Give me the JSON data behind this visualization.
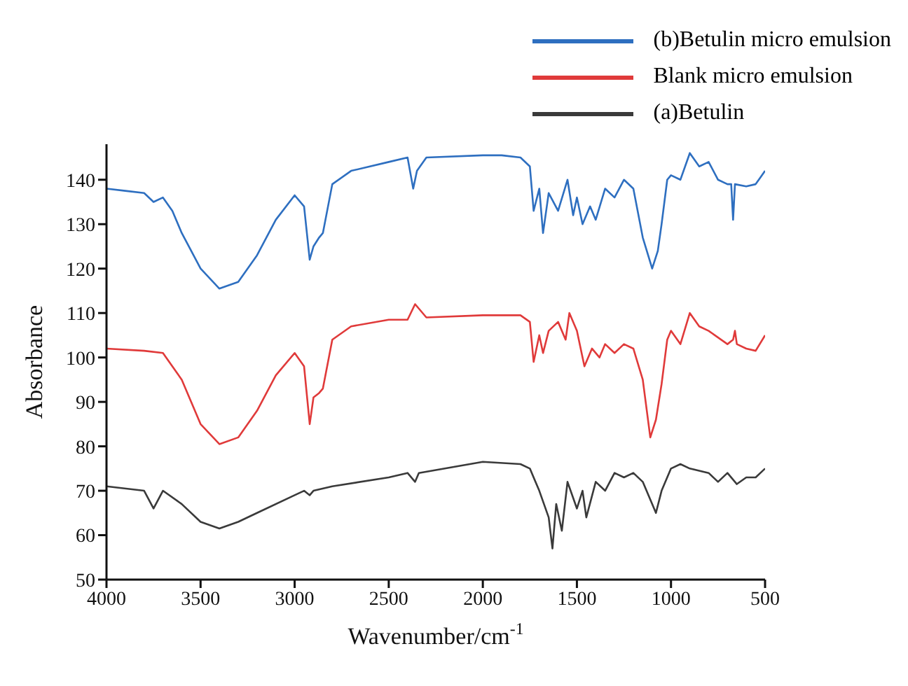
{
  "chart_data": {
    "type": "line",
    "xlabel": "Wavenumber/cm$^{-1}$",
    "ylabel": "Absorbance",
    "xlim": [
      4000,
      500
    ],
    "xticks": [
      4000,
      3500,
      3000,
      2500,
      2000,
      1500,
      1000,
      500
    ],
    "ylim": [
      50,
      148
    ],
    "yticks": [
      50,
      60,
      70,
      80,
      90,
      100,
      110,
      120,
      130,
      140
    ],
    "grid": false,
    "legend": "top right",
    "marker": "none",
    "line_style": "solid",
    "series": [
      {
        "name": "(b)Betulin micro emulsion",
        "color": "#2e6fc0",
        "x": [
          4000,
          3900,
          3800,
          3750,
          3700,
          3650,
          3600,
          3500,
          3400,
          3300,
          3200,
          3100,
          3000,
          2950,
          2920,
          2900,
          2870,
          2850,
          2800,
          2700,
          2500,
          2400,
          2370,
          2350,
          2300,
          2000,
          1900,
          1800,
          1750,
          1730,
          1700,
          1680,
          1650,
          1600,
          1550,
          1520,
          1500,
          1470,
          1430,
          1400,
          1350,
          1300,
          1250,
          1200,
          1150,
          1100,
          1070,
          1050,
          1020,
          1000,
          950,
          900,
          850,
          800,
          750,
          700,
          680,
          670,
          660,
          600,
          550,
          500
        ],
        "values": [
          138,
          137.5,
          137,
          135,
          136,
          133,
          128,
          120,
          115.5,
          117,
          123,
          131,
          136.5,
          134,
          122,
          125,
          127,
          128,
          139,
          142,
          144,
          145,
          138,
          142,
          145,
          145.5,
          145.5,
          145,
          143,
          133,
          138,
          128,
          137,
          133,
          140,
          132,
          136,
          130,
          134,
          131,
          138,
          136,
          140,
          138,
          127,
          120,
          124,
          130,
          140,
          141,
          140,
          146,
          143,
          144,
          140,
          139,
          139,
          131,
          139,
          138.5,
          139,
          142
        ]
      },
      {
        "name": "Blank micro emulsion",
        "color": "#e03a3a",
        "x": [
          4000,
          3800,
          3700,
          3600,
          3500,
          3400,
          3300,
          3200,
          3100,
          3000,
          2950,
          2920,
          2900,
          2870,
          2850,
          2800,
          2700,
          2500,
          2400,
          2360,
          2300,
          2000,
          1800,
          1750,
          1730,
          1700,
          1680,
          1650,
          1600,
          1560,
          1540,
          1500,
          1460,
          1420,
          1380,
          1350,
          1300,
          1250,
          1200,
          1150,
          1110,
          1080,
          1050,
          1020,
          1000,
          950,
          900,
          850,
          800,
          700,
          670,
          660,
          650,
          600,
          550,
          500
        ],
        "values": [
          102,
          101.5,
          101,
          95,
          85,
          80.5,
          82,
          88,
          96,
          101,
          98,
          85,
          91,
          92,
          93,
          104,
          107,
          108.5,
          108.5,
          112,
          109,
          109.5,
          109.5,
          108,
          99,
          105,
          101,
          106,
          108,
          104,
          110,
          106,
          98,
          102,
          100,
          103,
          101,
          103,
          102,
          95,
          82,
          86,
          94,
          104,
          106,
          103,
          110,
          107,
          106,
          103,
          104,
          106,
          103,
          102,
          101.5,
          105
        ]
      },
      {
        "name": "(a)Betulin",
        "color": "#3a3a3a",
        "x": [
          4000,
          3800,
          3750,
          3700,
          3600,
          3500,
          3400,
          3300,
          3200,
          3000,
          2950,
          2920,
          2900,
          2800,
          2500,
          2400,
          2360,
          2340,
          2000,
          1800,
          1750,
          1700,
          1650,
          1630,
          1610,
          1580,
          1550,
          1500,
          1470,
          1450,
          1400,
          1350,
          1300,
          1250,
          1200,
          1150,
          1100,
          1080,
          1050,
          1000,
          950,
          900,
          800,
          750,
          700,
          650,
          600,
          550,
          500
        ],
        "values": [
          71,
          70,
          66,
          70,
          67,
          63,
          61.5,
          63,
          65,
          69,
          70,
          69,
          70,
          71,
          73,
          74,
          72,
          74,
          76.5,
          76,
          75,
          70,
          64,
          57,
          67,
          61,
          72,
          66,
          70,
          64,
          72,
          70,
          74,
          73,
          74,
          72,
          67,
          65,
          70,
          75,
          76,
          75,
          74,
          72,
          74,
          71.5,
          73,
          73,
          75
        ]
      }
    ]
  }
}
